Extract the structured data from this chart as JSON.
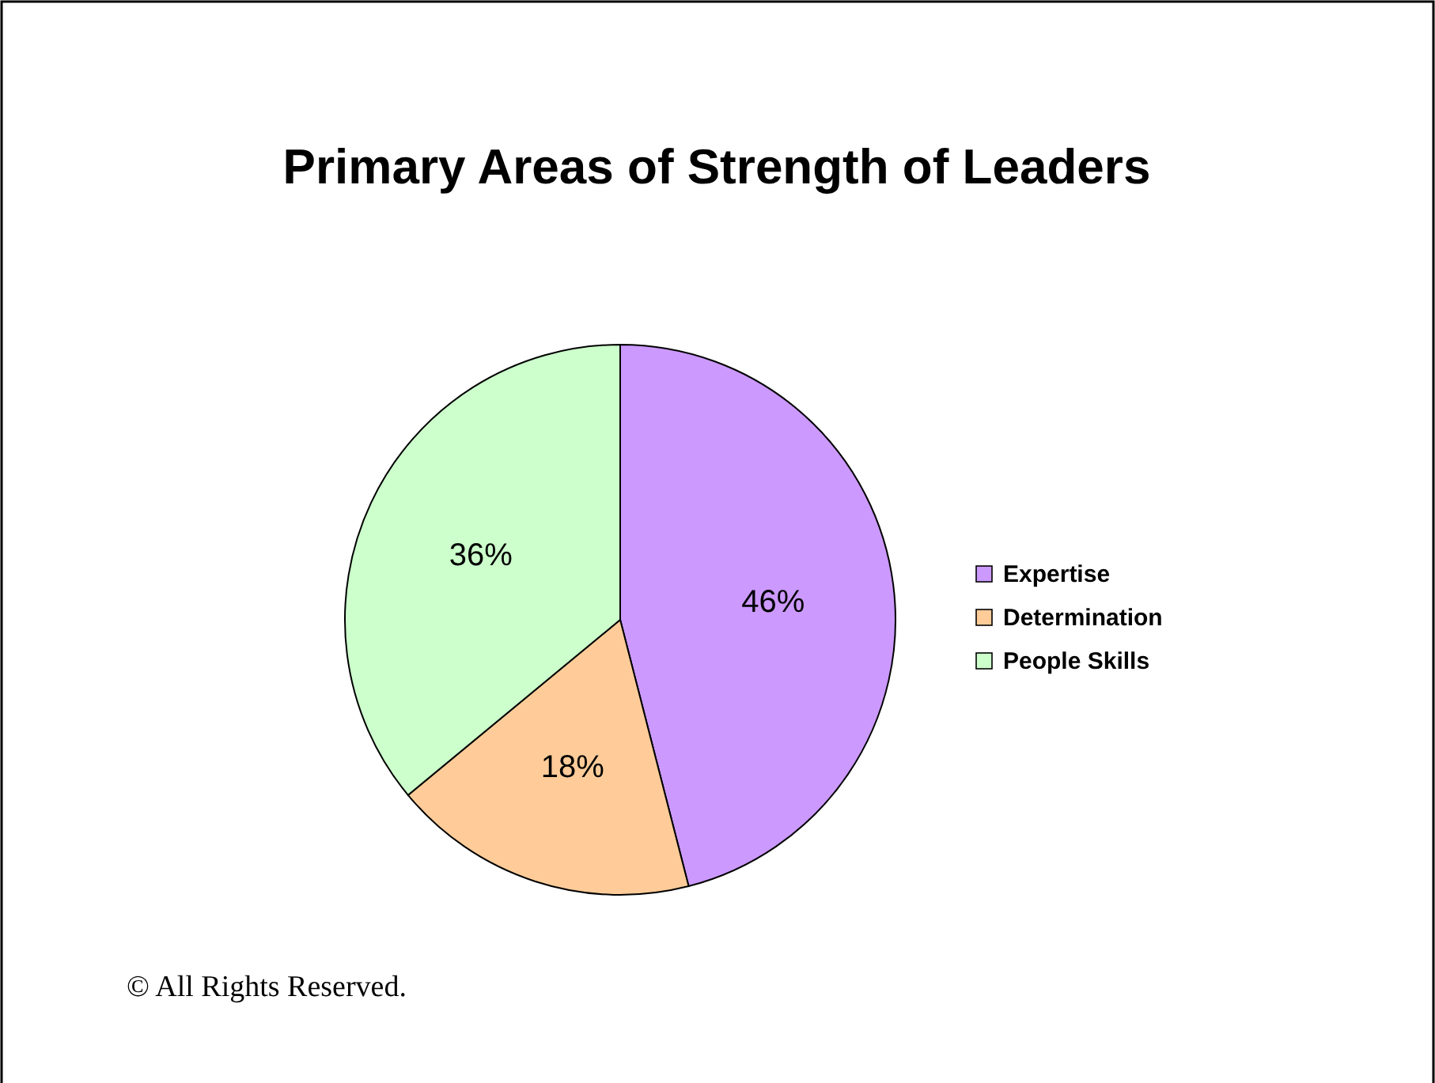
{
  "chart_data": {
    "type": "pie",
    "title": "Primary Areas of Strength of Leaders",
    "categories": [
      "Expertise",
      "Determination",
      "People Skills"
    ],
    "values": [
      46,
      18,
      36
    ],
    "colors": [
      "#cc99ff",
      "#ffcc99",
      "#ccffcc"
    ],
    "value_labels": [
      "46%",
      "18%",
      "36%"
    ],
    "legend": "right",
    "annotations": [
      "© All Rights Reserved."
    ]
  }
}
